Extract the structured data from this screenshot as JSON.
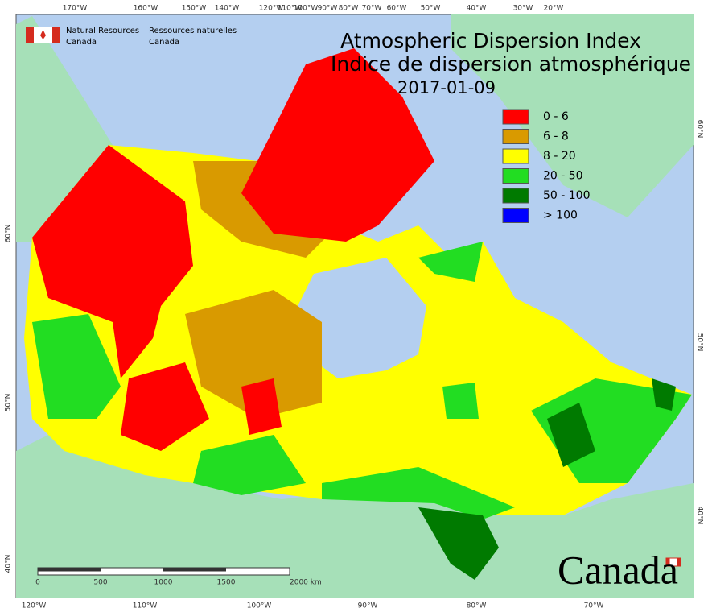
{
  "agency": {
    "en": [
      "Natural Resources",
      "Canada"
    ],
    "fr": [
      "Ressources naturelles",
      "Canada"
    ]
  },
  "title": [
    "Atmospheric Dispersion Index",
    "Indice de dispersion atmosphérique"
  ],
  "date": "2017-01-09",
  "legend": [
    {
      "label": "0 - 6",
      "color": "#ff0000"
    },
    {
      "label": "6 - 8",
      "color": "#d99a00"
    },
    {
      "label": "8 - 20",
      "color": "#ffff00"
    },
    {
      "label": "20 - 50",
      "color": "#22dd22"
    },
    {
      "label": "50 - 100",
      "color": "#007a00"
    },
    {
      "label": "> 100",
      "color": "#0000ff"
    }
  ],
  "top_labels": [
    "170°W",
    "160°W",
    "150°W",
    "140°W",
    "120°W",
    "110°W",
    "100°W",
    "90°W",
    "80°W",
    "70°W",
    "60°W",
    "50°W",
    "40°W",
    "30°W",
    "20°W"
  ],
  "bottom_labels": [
    "120°W",
    "110°W",
    "100°W",
    "90°W",
    "80°W",
    "70°W"
  ],
  "left_labels": [
    "60°N",
    "50°N",
    "40°N"
  ],
  "right_labels": [
    "60°N",
    "50°N",
    "40°N"
  ],
  "scale": [
    "0",
    "500",
    "1000",
    "1500",
    "2000 km"
  ],
  "wordmark": "Canada"
}
